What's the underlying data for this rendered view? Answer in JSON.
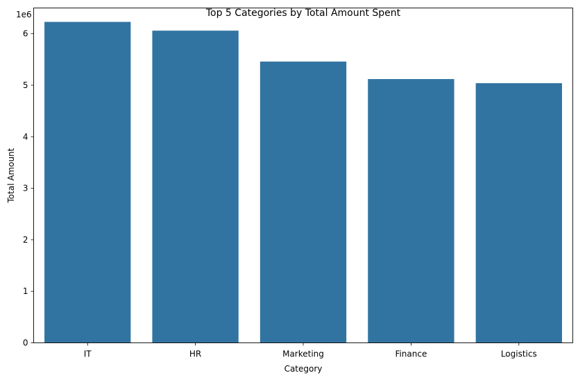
{
  "chart_data": {
    "type": "bar",
    "title": "Top 5 Categories by Total Amount Spent",
    "xlabel": "Category",
    "ylabel": "Total Amount",
    "offset_label": "1e6",
    "categories": [
      "IT",
      "HR",
      "Marketing",
      "Finance",
      "Logistics"
    ],
    "values": [
      6230000,
      6060000,
      5460000,
      5120000,
      5040000
    ],
    "ylim": [
      0,
      6500000
    ],
    "yticks": [
      0,
      1000000,
      2000000,
      3000000,
      4000000,
      5000000,
      6000000
    ],
    "ytick_labels": [
      "0",
      "1",
      "2",
      "3",
      "4",
      "5",
      "6"
    ],
    "grid": false,
    "bar_color": "#3274a1"
  }
}
